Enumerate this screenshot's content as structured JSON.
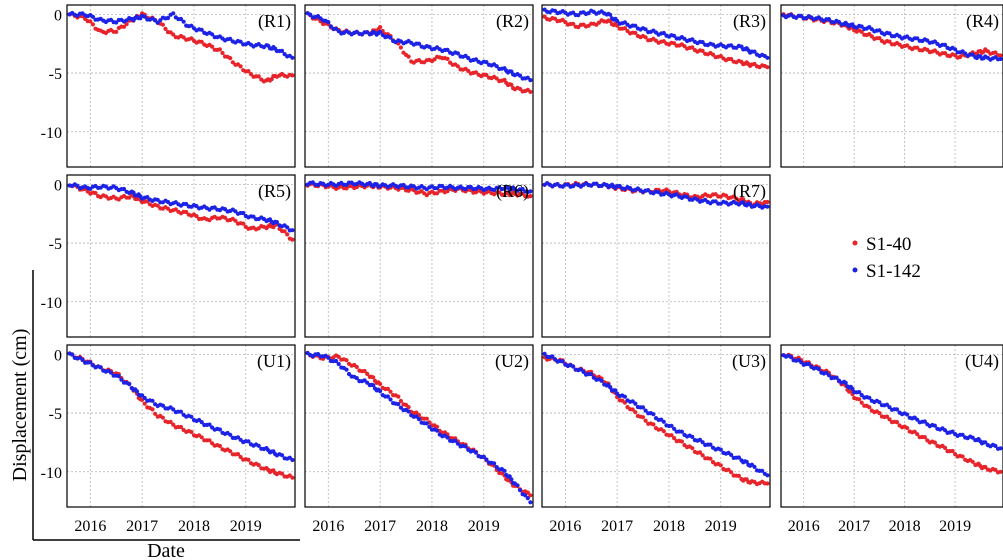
{
  "figure": {
    "ylabel": "Displacement (cm)",
    "xlabel": "Date",
    "legend": [
      {
        "label": "S1-40",
        "color": "#e8242b"
      },
      {
        "label": "S1-142",
        "color": "#1c22e6"
      }
    ],
    "legend_placement": "row 2, column 4",
    "x_ticks": [
      "2016",
      "2017",
      "2018",
      "2019"
    ],
    "y_ticks": [
      "0",
      "-5",
      "-10"
    ],
    "colors": {
      "s1_40": "#e8242b",
      "s1_142": "#1c22e6",
      "grid": "#b5b5b5"
    }
  },
  "chart_data": [
    {
      "type": "scatter",
      "title": "(R1)",
      "xlim": [
        2015.55,
        2019.95
      ],
      "ylim": [
        -13,
        0.8
      ],
      "grid": true,
      "series": [
        {
          "name": "S1-40",
          "x": [
            2015.6,
            2015.9,
            2016.2,
            2016.5,
            2016.8,
            2017.0,
            2017.3,
            2017.6,
            2017.9,
            2018.2,
            2018.5,
            2018.8,
            2019.1,
            2019.4,
            2019.6,
            2019.9
          ],
          "values": [
            0,
            -0.3,
            -1.5,
            -1.4,
            -0.5,
            0,
            -0.6,
            -1.8,
            -2.1,
            -2.5,
            -3.1,
            -4.2,
            -5.1,
            -5.7,
            -5.2,
            -5.2
          ]
        },
        {
          "name": "S1-142",
          "x": [
            2015.6,
            2015.9,
            2016.2,
            2016.5,
            2016.8,
            2017.0,
            2017.3,
            2017.6,
            2017.9,
            2018.2,
            2018.5,
            2018.8,
            2019.1,
            2019.4,
            2019.6,
            2019.9
          ],
          "values": [
            0,
            0,
            -0.5,
            -0.6,
            -0.4,
            -0.2,
            -0.6,
            0,
            -1.0,
            -1.5,
            -2.0,
            -2.3,
            -2.6,
            -2.7,
            -3.0,
            -3.7
          ]
        }
      ]
    },
    {
      "type": "scatter",
      "title": "(R2)",
      "xlim": [
        2015.55,
        2019.95
      ],
      "ylim": [
        -13,
        0.8
      ],
      "grid": true,
      "series": [
        {
          "name": "S1-40",
          "x": [
            2015.6,
            2015.9,
            2016.2,
            2016.5,
            2016.8,
            2017.0,
            2017.3,
            2017.6,
            2017.9,
            2018.2,
            2018.5,
            2018.8,
            2019.1,
            2019.4,
            2019.6,
            2019.9
          ],
          "values": [
            0,
            -0.7,
            -1.4,
            -1.6,
            -1.6,
            -1.2,
            -2.3,
            -4.0,
            -4.0,
            -3.6,
            -4.5,
            -5.0,
            -5.3,
            -5.7,
            -6.3,
            -6.6
          ]
        },
        {
          "name": "S1-142",
          "x": [
            2015.6,
            2015.9,
            2016.2,
            2016.5,
            2016.8,
            2017.0,
            2017.3,
            2017.6,
            2017.9,
            2018.2,
            2018.5,
            2018.8,
            2019.1,
            2019.4,
            2019.6,
            2019.9
          ],
          "values": [
            0,
            -0.4,
            -1.5,
            -1.6,
            -1.6,
            -1.6,
            -2.3,
            -2.4,
            -2.8,
            -3.0,
            -3.4,
            -3.9,
            -4.2,
            -4.7,
            -5.1,
            -5.6
          ]
        }
      ]
    },
    {
      "type": "scatter",
      "title": "(R3)",
      "xlim": [
        2015.55,
        2019.95
      ],
      "ylim": [
        -13,
        0.8
      ],
      "grid": true,
      "series": [
        {
          "name": "S1-40",
          "x": [
            2015.6,
            2015.9,
            2016.2,
            2016.5,
            2016.8,
            2017.0,
            2017.3,
            2017.6,
            2017.9,
            2018.2,
            2018.5,
            2018.8,
            2019.1,
            2019.4,
            2019.6,
            2019.9
          ],
          "values": [
            -0.3,
            -0.5,
            -1.0,
            -0.9,
            -0.5,
            -1.0,
            -1.6,
            -2.1,
            -2.4,
            -2.6,
            -3.0,
            -3.4,
            -3.8,
            -4.1,
            -4.3,
            -4.5
          ]
        },
        {
          "name": "S1-142",
          "x": [
            2015.6,
            2015.9,
            2016.2,
            2016.5,
            2016.8,
            2017.0,
            2017.3,
            2017.6,
            2017.9,
            2018.2,
            2018.5,
            2018.8,
            2019.1,
            2019.4,
            2019.6,
            2019.9
          ],
          "values": [
            0.3,
            0.2,
            0,
            0.2,
            0.1,
            -0.6,
            -1.0,
            -1.4,
            -1.7,
            -2.0,
            -2.3,
            -2.6,
            -2.7,
            -2.8,
            -3.2,
            -3.7
          ]
        }
      ]
    },
    {
      "type": "scatter",
      "title": "(R4)",
      "xlim": [
        2015.55,
        2019.95
      ],
      "ylim": [
        -13,
        0.8
      ],
      "grid": true,
      "series": [
        {
          "name": "S1-40",
          "x": [
            2015.6,
            2015.9,
            2016.2,
            2016.5,
            2016.8,
            2017.0,
            2017.3,
            2017.6,
            2017.9,
            2018.2,
            2018.5,
            2018.8,
            2019.1,
            2019.4,
            2019.6,
            2019.9
          ],
          "values": [
            0,
            -0.2,
            -0.4,
            -0.6,
            -0.9,
            -1.3,
            -1.8,
            -2.3,
            -2.6,
            -2.9,
            -3.1,
            -3.4,
            -3.6,
            -3.3,
            -3.1,
            -3.5
          ]
        },
        {
          "name": "S1-142",
          "x": [
            2015.6,
            2015.9,
            2016.2,
            2016.5,
            2016.8,
            2017.0,
            2017.3,
            2017.6,
            2017.9,
            2018.2,
            2018.5,
            2018.8,
            2019.1,
            2019.4,
            2019.6,
            2019.9
          ],
          "values": [
            -0.1,
            -0.2,
            -0.3,
            -0.5,
            -0.8,
            -1.0,
            -1.2,
            -1.6,
            -1.9,
            -2.1,
            -2.3,
            -2.7,
            -3.2,
            -3.6,
            -3.7,
            -3.8
          ]
        }
      ]
    },
    {
      "type": "scatter",
      "title": "(R5)",
      "xlim": [
        2015.55,
        2019.95
      ],
      "ylim": [
        -13,
        0.8
      ],
      "grid": true,
      "series": [
        {
          "name": "S1-40",
          "x": [
            2015.6,
            2015.9,
            2016.2,
            2016.5,
            2016.8,
            2017.0,
            2017.3,
            2017.6,
            2017.9,
            2018.2,
            2018.5,
            2018.8,
            2019.1,
            2019.4,
            2019.6,
            2019.9
          ],
          "values": [
            0,
            -0.5,
            -1.0,
            -1.2,
            -1.0,
            -1.4,
            -1.9,
            -2.2,
            -2.5,
            -3.0,
            -2.8,
            -3.1,
            -3.8,
            -3.6,
            -3.5,
            -4.7
          ]
        },
        {
          "name": "S1-142",
          "x": [
            2015.6,
            2015.9,
            2016.2,
            2016.5,
            2016.8,
            2017.0,
            2017.3,
            2017.6,
            2017.9,
            2018.2,
            2018.5,
            2018.8,
            2019.1,
            2019.4,
            2019.6,
            2019.9
          ],
          "values": [
            0,
            -0.3,
            -0.2,
            -0.3,
            -0.7,
            -1.1,
            -1.4,
            -1.6,
            -1.8,
            -2.0,
            -2.1,
            -2.3,
            -2.8,
            -3.0,
            -3.3,
            -3.9
          ]
        }
      ]
    },
    {
      "type": "scatter",
      "title": "(R6)",
      "xlim": [
        2015.55,
        2019.95
      ],
      "ylim": [
        -13,
        0.8
      ],
      "grid": true,
      "series": [
        {
          "name": "S1-40",
          "x": [
            2015.6,
            2015.9,
            2016.2,
            2016.5,
            2016.8,
            2017.0,
            2017.3,
            2017.6,
            2017.9,
            2018.2,
            2018.5,
            2018.8,
            2019.1,
            2019.4,
            2019.6,
            2019.9
          ],
          "values": [
            0,
            -0.1,
            -0.3,
            -0.2,
            -0.1,
            -0.2,
            -0.3,
            -0.5,
            -0.8,
            -0.6,
            -0.4,
            -0.6,
            -0.7,
            -0.8,
            -0.8,
            -1.0
          ]
        },
        {
          "name": "S1-142",
          "x": [
            2015.6,
            2015.9,
            2016.2,
            2016.5,
            2016.8,
            2017.0,
            2017.3,
            2017.6,
            2017.9,
            2018.2,
            2018.5,
            2018.8,
            2019.1,
            2019.4,
            2019.6,
            2019.9
          ],
          "values": [
            0.1,
            0,
            0,
            0.1,
            0,
            -0.1,
            -0.1,
            -0.2,
            -0.3,
            -0.2,
            -0.3,
            -0.3,
            -0.4,
            -0.3,
            -0.4,
            -0.6
          ]
        }
      ]
    },
    {
      "type": "scatter",
      "title": "(R7)",
      "xlim": [
        2015.55,
        2019.95
      ],
      "ylim": [
        -13,
        0.8
      ],
      "grid": true,
      "series": [
        {
          "name": "S1-40",
          "x": [
            2015.6,
            2015.9,
            2016.2,
            2016.5,
            2016.8,
            2017.0,
            2017.3,
            2017.6,
            2017.9,
            2018.2,
            2018.5,
            2018.8,
            2019.1,
            2019.4,
            2019.6,
            2019.9
          ],
          "values": [
            0,
            -0.1,
            0,
            0,
            -0.1,
            -0.3,
            -0.5,
            -0.6,
            -0.5,
            -0.8,
            -1.1,
            -0.9,
            -1.0,
            -1.3,
            -1.7,
            -1.5
          ]
        },
        {
          "name": "S1-142",
          "x": [
            2015.6,
            2015.9,
            2016.2,
            2016.5,
            2016.8,
            2017.0,
            2017.3,
            2017.6,
            2017.9,
            2018.2,
            2018.5,
            2018.8,
            2019.1,
            2019.4,
            2019.6,
            2019.9
          ],
          "values": [
            0,
            -0.1,
            -0.1,
            0,
            -0.1,
            -0.2,
            -0.4,
            -0.6,
            -0.8,
            -1.0,
            -1.3,
            -1.5,
            -1.6,
            -1.6,
            -1.8,
            -1.9
          ]
        }
      ]
    },
    {
      "type": "scatter",
      "title": "(U1)",
      "xlim": [
        2015.55,
        2019.95
      ],
      "ylim": [
        -13,
        0.8
      ],
      "grid": true,
      "series": [
        {
          "name": "S1-40",
          "x": [
            2015.6,
            2015.9,
            2016.2,
            2016.5,
            2016.8,
            2017.0,
            2017.3,
            2017.6,
            2017.9,
            2018.2,
            2018.5,
            2018.8,
            2019.1,
            2019.4,
            2019.6,
            2019.9
          ],
          "values": [
            0,
            -0.5,
            -1.2,
            -1.6,
            -2.8,
            -4.0,
            -5.2,
            -6.0,
            -6.6,
            -7.2,
            -7.9,
            -8.5,
            -9.2,
            -9.8,
            -10.1,
            -10.5
          ]
        },
        {
          "name": "S1-142",
          "x": [
            2015.6,
            2015.9,
            2016.2,
            2016.5,
            2016.8,
            2017.0,
            2017.3,
            2017.6,
            2017.9,
            2018.2,
            2018.5,
            2018.8,
            2019.1,
            2019.4,
            2019.6,
            2019.9
          ],
          "values": [
            0,
            -0.6,
            -1.2,
            -1.8,
            -2.8,
            -3.6,
            -4.3,
            -4.7,
            -5.3,
            -5.9,
            -6.5,
            -7.1,
            -7.6,
            -8.1,
            -8.5,
            -9.0
          ]
        }
      ]
    },
    {
      "type": "scatter",
      "title": "(U2)",
      "xlim": [
        2015.55,
        2019.95
      ],
      "ylim": [
        -13,
        0.8
      ],
      "grid": true,
      "series": [
        {
          "name": "S1-40",
          "x": [
            2015.6,
            2015.9,
            2016.2,
            2016.5,
            2016.8,
            2017.0,
            2017.3,
            2017.6,
            2017.9,
            2018.2,
            2018.5,
            2018.8,
            2019.1,
            2019.4,
            2019.6,
            2019.9
          ],
          "values": [
            0,
            -0.3,
            -0.2,
            -1.0,
            -1.8,
            -2.6,
            -3.5,
            -4.8,
            -5.6,
            -6.6,
            -7.4,
            -8.2,
            -9.2,
            -10.4,
            -11.2,
            -12.0
          ]
        },
        {
          "name": "S1-142",
          "x": [
            2015.6,
            2015.9,
            2016.2,
            2016.5,
            2016.8,
            2017.0,
            2017.3,
            2017.6,
            2017.9,
            2018.2,
            2018.5,
            2018.8,
            2019.1,
            2019.4,
            2019.6,
            2019.9
          ],
          "values": [
            0,
            -0.1,
            -0.8,
            -2.0,
            -2.5,
            -3.2,
            -4.2,
            -5.1,
            -6.0,
            -6.9,
            -7.6,
            -8.3,
            -9.1,
            -10.0,
            -11.0,
            -12.6
          ]
        }
      ]
    },
    {
      "type": "scatter",
      "title": "(U3)",
      "xlim": [
        2015.55,
        2019.95
      ],
      "ylim": [
        -13,
        0.8
      ],
      "grid": true,
      "series": [
        {
          "name": "S1-40",
          "x": [
            2015.6,
            2015.9,
            2016.2,
            2016.5,
            2016.8,
            2017.0,
            2017.3,
            2017.6,
            2017.9,
            2018.2,
            2018.5,
            2018.8,
            2019.1,
            2019.4,
            2019.6,
            2019.9
          ],
          "values": [
            -0.3,
            -0.5,
            -1.2,
            -1.6,
            -2.4,
            -3.6,
            -4.8,
            -5.8,
            -6.6,
            -7.4,
            -8.2,
            -9.0,
            -9.8,
            -10.6,
            -10.9,
            -11.0
          ]
        },
        {
          "name": "S1-142",
          "x": [
            2015.6,
            2015.9,
            2016.2,
            2016.5,
            2016.8,
            2017.0,
            2017.3,
            2017.6,
            2017.9,
            2018.2,
            2018.5,
            2018.8,
            2019.1,
            2019.4,
            2019.6,
            2019.9
          ],
          "values": [
            0,
            -0.6,
            -1.2,
            -1.8,
            -2.6,
            -3.3,
            -4.1,
            -4.9,
            -5.8,
            -6.6,
            -7.2,
            -7.8,
            -8.4,
            -9.0,
            -9.5,
            -10.3
          ]
        }
      ]
    },
    {
      "type": "scatter",
      "title": "(U4)",
      "xlim": [
        2015.55,
        2019.95
      ],
      "ylim": [
        -13,
        0.8
      ],
      "grid": true,
      "series": [
        {
          "name": "S1-40",
          "x": [
            2015.6,
            2015.9,
            2016.2,
            2016.5,
            2016.8,
            2017.0,
            2017.3,
            2017.6,
            2017.9,
            2018.2,
            2018.5,
            2018.8,
            2019.1,
            2019.4,
            2019.6,
            2019.9
          ],
          "values": [
            0,
            -0.4,
            -1.0,
            -1.6,
            -2.6,
            -3.6,
            -4.6,
            -5.3,
            -6.0,
            -6.7,
            -7.4,
            -8.0,
            -8.7,
            -9.3,
            -9.7,
            -10.0
          ]
        },
        {
          "name": "S1-142",
          "x": [
            2015.6,
            2015.9,
            2016.2,
            2016.5,
            2016.8,
            2017.0,
            2017.3,
            2017.6,
            2017.9,
            2018.2,
            2018.5,
            2018.8,
            2019.1,
            2019.4,
            2019.6,
            2019.9
          ],
          "values": [
            0,
            -0.6,
            -1.1,
            -1.8,
            -2.4,
            -3.1,
            -3.8,
            -4.3,
            -4.9,
            -5.5,
            -6.0,
            -6.5,
            -6.9,
            -7.2,
            -7.6,
            -8.0
          ]
        }
      ]
    }
  ]
}
